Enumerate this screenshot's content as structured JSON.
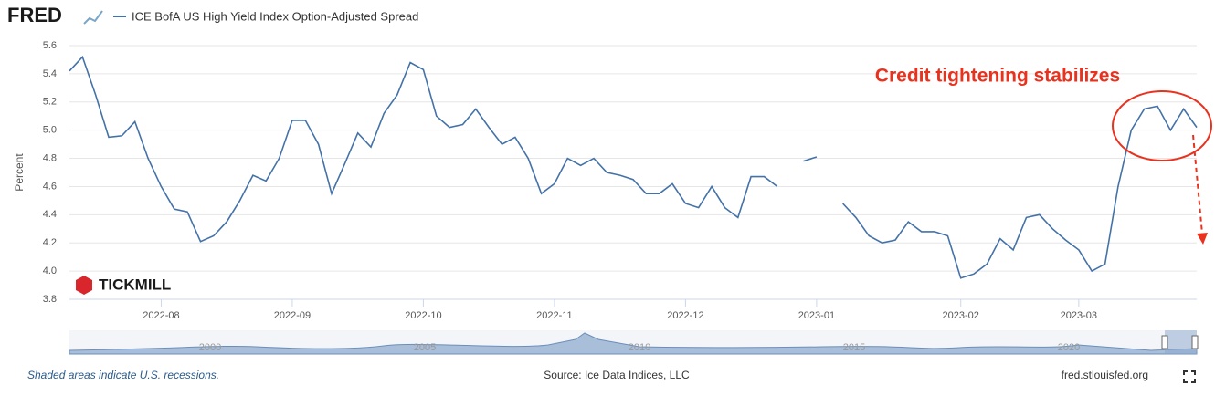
{
  "logo": "FRED",
  "watermark": "TICKMILL",
  "chart_data": {
    "type": "line",
    "ylabel": "Percent",
    "annotation": "Credit tightening stabilizes",
    "categories": [
      null,
      null,
      null,
      null,
      null,
      null,
      null,
      "2022-08",
      null,
      null,
      null,
      null,
      null,
      null,
      null,
      null,
      null,
      "2022-09",
      null,
      null,
      null,
      null,
      null,
      null,
      null,
      null,
      null,
      "2022-10",
      null,
      null,
      null,
      null,
      null,
      null,
      null,
      null,
      null,
      "2022-11",
      null,
      null,
      null,
      null,
      null,
      null,
      null,
      null,
      null,
      "2022-12",
      null,
      null,
      null,
      null,
      null,
      null,
      null,
      null,
      null,
      "2023-01",
      null,
      null,
      null,
      null,
      null,
      null,
      null,
      null,
      null,
      null,
      "2023-02",
      null,
      null,
      null,
      null,
      null,
      null,
      null,
      null,
      "2023-03",
      null,
      null,
      null,
      null,
      null,
      null,
      null,
      null,
      null
    ],
    "series": [
      {
        "name": "ICE BofA US High Yield Index Option-Adjusted Spread",
        "color": "#4472a8",
        "values": [
          5.42,
          5.52,
          5.25,
          4.95,
          4.96,
          5.06,
          4.8,
          4.6,
          4.44,
          4.42,
          4.21,
          4.25,
          4.35,
          4.5,
          4.68,
          4.64,
          4.8,
          5.07,
          5.07,
          4.9,
          4.55,
          4.76,
          4.98,
          4.88,
          5.12,
          5.25,
          5.48,
          5.43,
          5.1,
          5.02,
          5.04,
          5.15,
          5.02,
          4.9,
          4.95,
          4.8,
          4.55,
          4.62,
          4.8,
          4.75,
          4.8,
          4.7,
          4.68,
          4.65,
          4.55,
          4.55,
          4.62,
          4.48,
          4.45,
          4.6,
          4.45,
          4.38,
          4.67,
          4.67,
          4.6,
          null,
          4.78,
          4.81,
          null,
          4.48,
          4.38,
          4.25,
          4.2,
          4.22,
          4.35,
          4.28,
          4.28,
          4.25,
          3.95,
          3.98,
          4.05,
          4.23,
          4.15,
          4.38,
          4.4,
          4.3,
          4.22,
          4.15,
          4.0,
          4.05,
          4.6,
          5.0,
          5.15,
          5.17,
          5.0,
          5.15,
          5.02
        ]
      }
    ],
    "ylim": [
      3.8,
      5.6
    ],
    "yticks": [
      3.8,
      {
        "value": 4,
        "label": "4.0"
      },
      4.2,
      4.4,
      4.6,
      4.8,
      {
        "value": 5,
        "label": "5.0"
      },
      5.2,
      5.4,
      5.6
    ],
    "grid": true,
    "navigator_labels": [
      "2000",
      "2005",
      "2010",
      "2015",
      "2020"
    ]
  },
  "footer": {
    "note": "Shaded areas indicate U.S. recessions.",
    "source": "Source: Ice Data Indices, LLC",
    "site": "fred.stlouisfed.org"
  }
}
